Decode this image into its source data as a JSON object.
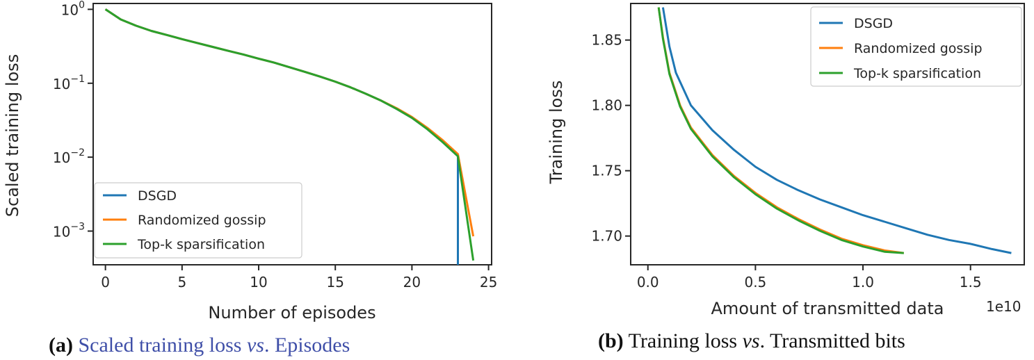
{
  "colors": {
    "dsgd": "#1f77b4",
    "gossip": "#ff7f0e",
    "topk": "#2ca02c",
    "caption_link": "#3f4fa8"
  },
  "chart_data": [
    {
      "type": "line",
      "xlabel": "Number of episodes",
      "ylabel": "Scaled training loss",
      "yscale": "log",
      "xlim": [
        -0.8,
        25.2
      ],
      "ylim": [
        0.00035,
        1.2
      ],
      "xticks": [
        0,
        5,
        10,
        15,
        20,
        25
      ],
      "xtick_labels": [
        "0",
        "5",
        "10",
        "15",
        "20",
        "25"
      ],
      "yticks": [
        1,
        0.1,
        0.01,
        0.001
      ],
      "ytick_labels": [
        {
          "base": "10",
          "exp": "0"
        },
        {
          "base": "10",
          "exp": "−1"
        },
        {
          "base": "10",
          "exp": "−2"
        },
        {
          "base": "10",
          "exp": "−3"
        }
      ],
      "legend_loc": "lower-left",
      "series": [
        {
          "name": "DSGD",
          "color_key": "dsgd",
          "x": [
            0,
            1,
            2,
            3,
            4,
            5,
            6,
            7,
            8,
            9,
            10,
            11,
            12,
            13,
            14,
            15,
            16,
            17,
            18,
            19,
            20,
            21,
            22,
            23,
            23
          ],
          "y": [
            1.0,
            0.73,
            0.6,
            0.51,
            0.45,
            0.395,
            0.35,
            0.31,
            0.275,
            0.245,
            0.215,
            0.19,
            0.165,
            0.143,
            0.123,
            0.105,
            0.088,
            0.072,
            0.058,
            0.045,
            0.034,
            0.024,
            0.016,
            0.0103,
            0.00035
          ]
        },
        {
          "name": "Randomized gossip",
          "color_key": "gossip",
          "x": [
            0,
            1,
            2,
            3,
            4,
            5,
            6,
            7,
            8,
            9,
            10,
            11,
            12,
            13,
            14,
            15,
            16,
            17,
            18,
            19,
            20,
            21,
            22,
            23,
            24
          ],
          "y": [
            1.0,
            0.73,
            0.6,
            0.51,
            0.45,
            0.395,
            0.35,
            0.31,
            0.275,
            0.245,
            0.215,
            0.19,
            0.165,
            0.143,
            0.123,
            0.105,
            0.088,
            0.072,
            0.058,
            0.046,
            0.035,
            0.025,
            0.017,
            0.011,
            0.00085
          ]
        },
        {
          "name": "Top-k sparsification",
          "color_key": "topk",
          "x": [
            0,
            1,
            2,
            3,
            4,
            5,
            6,
            7,
            8,
            9,
            10,
            11,
            12,
            13,
            14,
            15,
            16,
            17,
            18,
            19,
            20,
            21,
            22,
            23,
            24
          ],
          "y": [
            1.0,
            0.73,
            0.6,
            0.51,
            0.45,
            0.395,
            0.35,
            0.31,
            0.275,
            0.245,
            0.215,
            0.19,
            0.165,
            0.143,
            0.123,
            0.105,
            0.088,
            0.072,
            0.058,
            0.045,
            0.034,
            0.024,
            0.016,
            0.0103,
            0.0004
          ]
        }
      ]
    },
    {
      "type": "line",
      "xlabel": "Amount of transmitted data",
      "x_offset_label": "1e10",
      "ylabel": "Training loss",
      "yscale": "linear",
      "xlim": [
        -0.08,
        1.75
      ],
      "ylim": [
        1.678,
        1.878
      ],
      "xticks": [
        0.0,
        0.5,
        1.0,
        1.5
      ],
      "xtick_labels": [
        "0.0",
        "0.5",
        "1.0",
        "1.5"
      ],
      "yticks": [
        1.7,
        1.75,
        1.8,
        1.85
      ],
      "ytick_labels": [
        "1.70",
        "1.75",
        "1.80",
        "1.85"
      ],
      "legend_loc": "upper-right",
      "series": [
        {
          "name": "DSGD",
          "color_key": "dsgd",
          "x": [
            0.07,
            0.1,
            0.13,
            0.2,
            0.3,
            0.4,
            0.5,
            0.6,
            0.7,
            0.8,
            0.9,
            1.0,
            1.1,
            1.2,
            1.3,
            1.4,
            1.5,
            1.6,
            1.69
          ],
          "y": [
            1.875,
            1.845,
            1.825,
            1.8,
            1.781,
            1.766,
            1.753,
            1.743,
            1.735,
            1.728,
            1.722,
            1.716,
            1.711,
            1.706,
            1.701,
            1.697,
            1.694,
            1.69,
            1.687
          ]
        },
        {
          "name": "Randomized gossip",
          "color_key": "gossip",
          "x": [
            0.05,
            0.07,
            0.1,
            0.15,
            0.2,
            0.3,
            0.4,
            0.5,
            0.6,
            0.7,
            0.8,
            0.9,
            1.0,
            1.1,
            1.19
          ],
          "y": [
            1.875,
            1.852,
            1.825,
            1.8,
            1.783,
            1.762,
            1.746,
            1.733,
            1.722,
            1.713,
            1.705,
            1.698,
            1.693,
            1.689,
            1.687
          ]
        },
        {
          "name": "Top-k sparsification",
          "color_key": "topk",
          "x": [
            0.05,
            0.07,
            0.1,
            0.15,
            0.2,
            0.3,
            0.4,
            0.5,
            0.6,
            0.7,
            0.8,
            0.9,
            1.0,
            1.1,
            1.19
          ],
          "y": [
            1.875,
            1.851,
            1.824,
            1.799,
            1.782,
            1.761,
            1.745,
            1.732,
            1.721,
            1.712,
            1.704,
            1.697,
            1.692,
            1.688,
            1.687
          ]
        }
      ]
    }
  ],
  "captions": [
    {
      "label": "(a)",
      "text": "Scaled training loss ",
      "vs": "vs",
      "tail": ". Episodes"
    },
    {
      "label": "(b)",
      "text": "Training loss ",
      "vs": "vs",
      "tail": ". Transmitted bits"
    }
  ]
}
